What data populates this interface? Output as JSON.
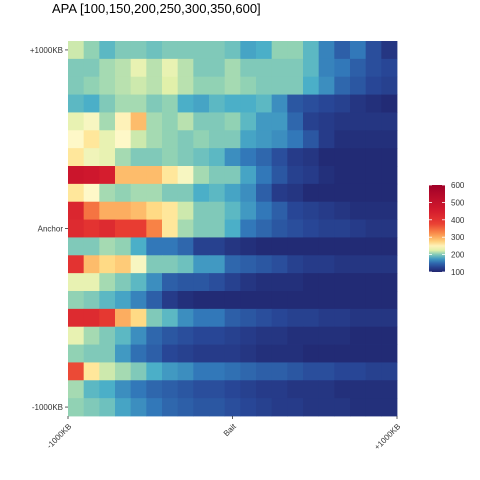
{
  "chart_data": {
    "type": "heatmap",
    "title": "APA [100,150,200,250,300,350,600]",
    "x_tick_labels": [
      "-1000KB",
      "Bait",
      "+1000KB"
    ],
    "y_tick_labels": [
      "+1000KB",
      "Anchor",
      "-1000KB"
    ],
    "color_scale": {
      "min": 100,
      "max": 600,
      "ticks": [
        100,
        200,
        300,
        400,
        500,
        600
      ],
      "palette": "Spectral (reversed)"
    },
    "rows": 21,
    "cols": 21,
    "values": [
      [
        220,
        205,
        190,
        200,
        200,
        195,
        200,
        200,
        200,
        200,
        195,
        180,
        185,
        205,
        205,
        190,
        165,
        145,
        160,
        135,
        115
      ],
      [
        200,
        200,
        210,
        215,
        230,
        215,
        230,
        215,
        200,
        200,
        210,
        200,
        200,
        200,
        200,
        190,
        165,
        160,
        145,
        135,
        130
      ],
      [
        200,
        205,
        210,
        215,
        220,
        215,
        225,
        215,
        205,
        205,
        210,
        205,
        200,
        200,
        200,
        185,
        170,
        150,
        140,
        130,
        125
      ],
      [
        190,
        185,
        200,
        210,
        210,
        200,
        205,
        185,
        180,
        190,
        185,
        185,
        190,
        170,
        140,
        135,
        130,
        125,
        115,
        110,
        105
      ],
      [
        230,
        240,
        210,
        250,
        290,
        210,
        205,
        215,
        200,
        200,
        205,
        190,
        175,
        175,
        150,
        125,
        120,
        115,
        115,
        115,
        115
      ],
      [
        245,
        260,
        230,
        245,
        220,
        210,
        205,
        200,
        205,
        200,
        200,
        180,
        175,
        170,
        160,
        140,
        120,
        110,
        110,
        110,
        110
      ],
      [
        260,
        235,
        230,
        210,
        200,
        200,
        205,
        200,
        195,
        190,
        170,
        160,
        150,
        135,
        120,
        115,
        105,
        105,
        105,
        105,
        105
      ],
      [
        480,
        470,
        450,
        290,
        290,
        290,
        260,
        240,
        210,
        200,
        200,
        180,
        160,
        140,
        125,
        120,
        110,
        105,
        105,
        105,
        105
      ],
      [
        260,
        245,
        210,
        205,
        210,
        210,
        200,
        200,
        185,
        190,
        180,
        170,
        145,
        120,
        115,
        105,
        105,
        105,
        105,
        105,
        105
      ],
      [
        430,
        340,
        300,
        300,
        290,
        270,
        260,
        220,
        200,
        200,
        190,
        175,
        160,
        145,
        130,
        125,
        120,
        115,
        110,
        110,
        110
      ],
      [
        420,
        400,
        420,
        380,
        380,
        330,
        260,
        210,
        200,
        200,
        185,
        160,
        150,
        140,
        135,
        130,
        125,
        125,
        120,
        115,
        115
      ],
      [
        200,
        200,
        210,
        205,
        185,
        160,
        160,
        150,
        125,
        125,
        115,
        110,
        105,
        105,
        105,
        105,
        105,
        105,
        105,
        105,
        105
      ],
      [
        400,
        290,
        270,
        280,
        240,
        200,
        200,
        195,
        175,
        175,
        150,
        145,
        140,
        135,
        125,
        120,
        120,
        115,
        115,
        115,
        115
      ],
      [
        230,
        230,
        210,
        200,
        190,
        170,
        145,
        140,
        140,
        135,
        125,
        115,
        110,
        110,
        110,
        105,
        105,
        105,
        105,
        105,
        105
      ],
      [
        205,
        200,
        190,
        180,
        165,
        145,
        120,
        110,
        105,
        105,
        105,
        105,
        105,
        105,
        105,
        105,
        105,
        105,
        105,
        105,
        105
      ],
      [
        420,
        420,
        390,
        300,
        270,
        200,
        190,
        170,
        160,
        160,
        145,
        140,
        135,
        130,
        125,
        125,
        120,
        120,
        115,
        115,
        115
      ],
      [
        230,
        210,
        200,
        190,
        170,
        150,
        140,
        135,
        130,
        130,
        125,
        120,
        115,
        115,
        110,
        110,
        110,
        110,
        105,
        105,
        105
      ],
      [
        205,
        200,
        200,
        175,
        155,
        145,
        130,
        125,
        120,
        120,
        120,
        115,
        110,
        110,
        110,
        105,
        105,
        105,
        105,
        105,
        105
      ],
      [
        370,
        260,
        220,
        210,
        200,
        185,
        175,
        170,
        160,
        160,
        155,
        150,
        145,
        145,
        140,
        135,
        135,
        130,
        130,
        125,
        125
      ],
      [
        210,
        190,
        185,
        170,
        160,
        150,
        145,
        140,
        135,
        135,
        130,
        125,
        120,
        120,
        115,
        115,
        115,
        110,
        110,
        110,
        110
      ],
      [
        205,
        200,
        195,
        180,
        170,
        160,
        150,
        145,
        140,
        140,
        135,
        130,
        125,
        120,
        120,
        115,
        115,
        115,
        110,
        110,
        110
      ]
    ]
  }
}
